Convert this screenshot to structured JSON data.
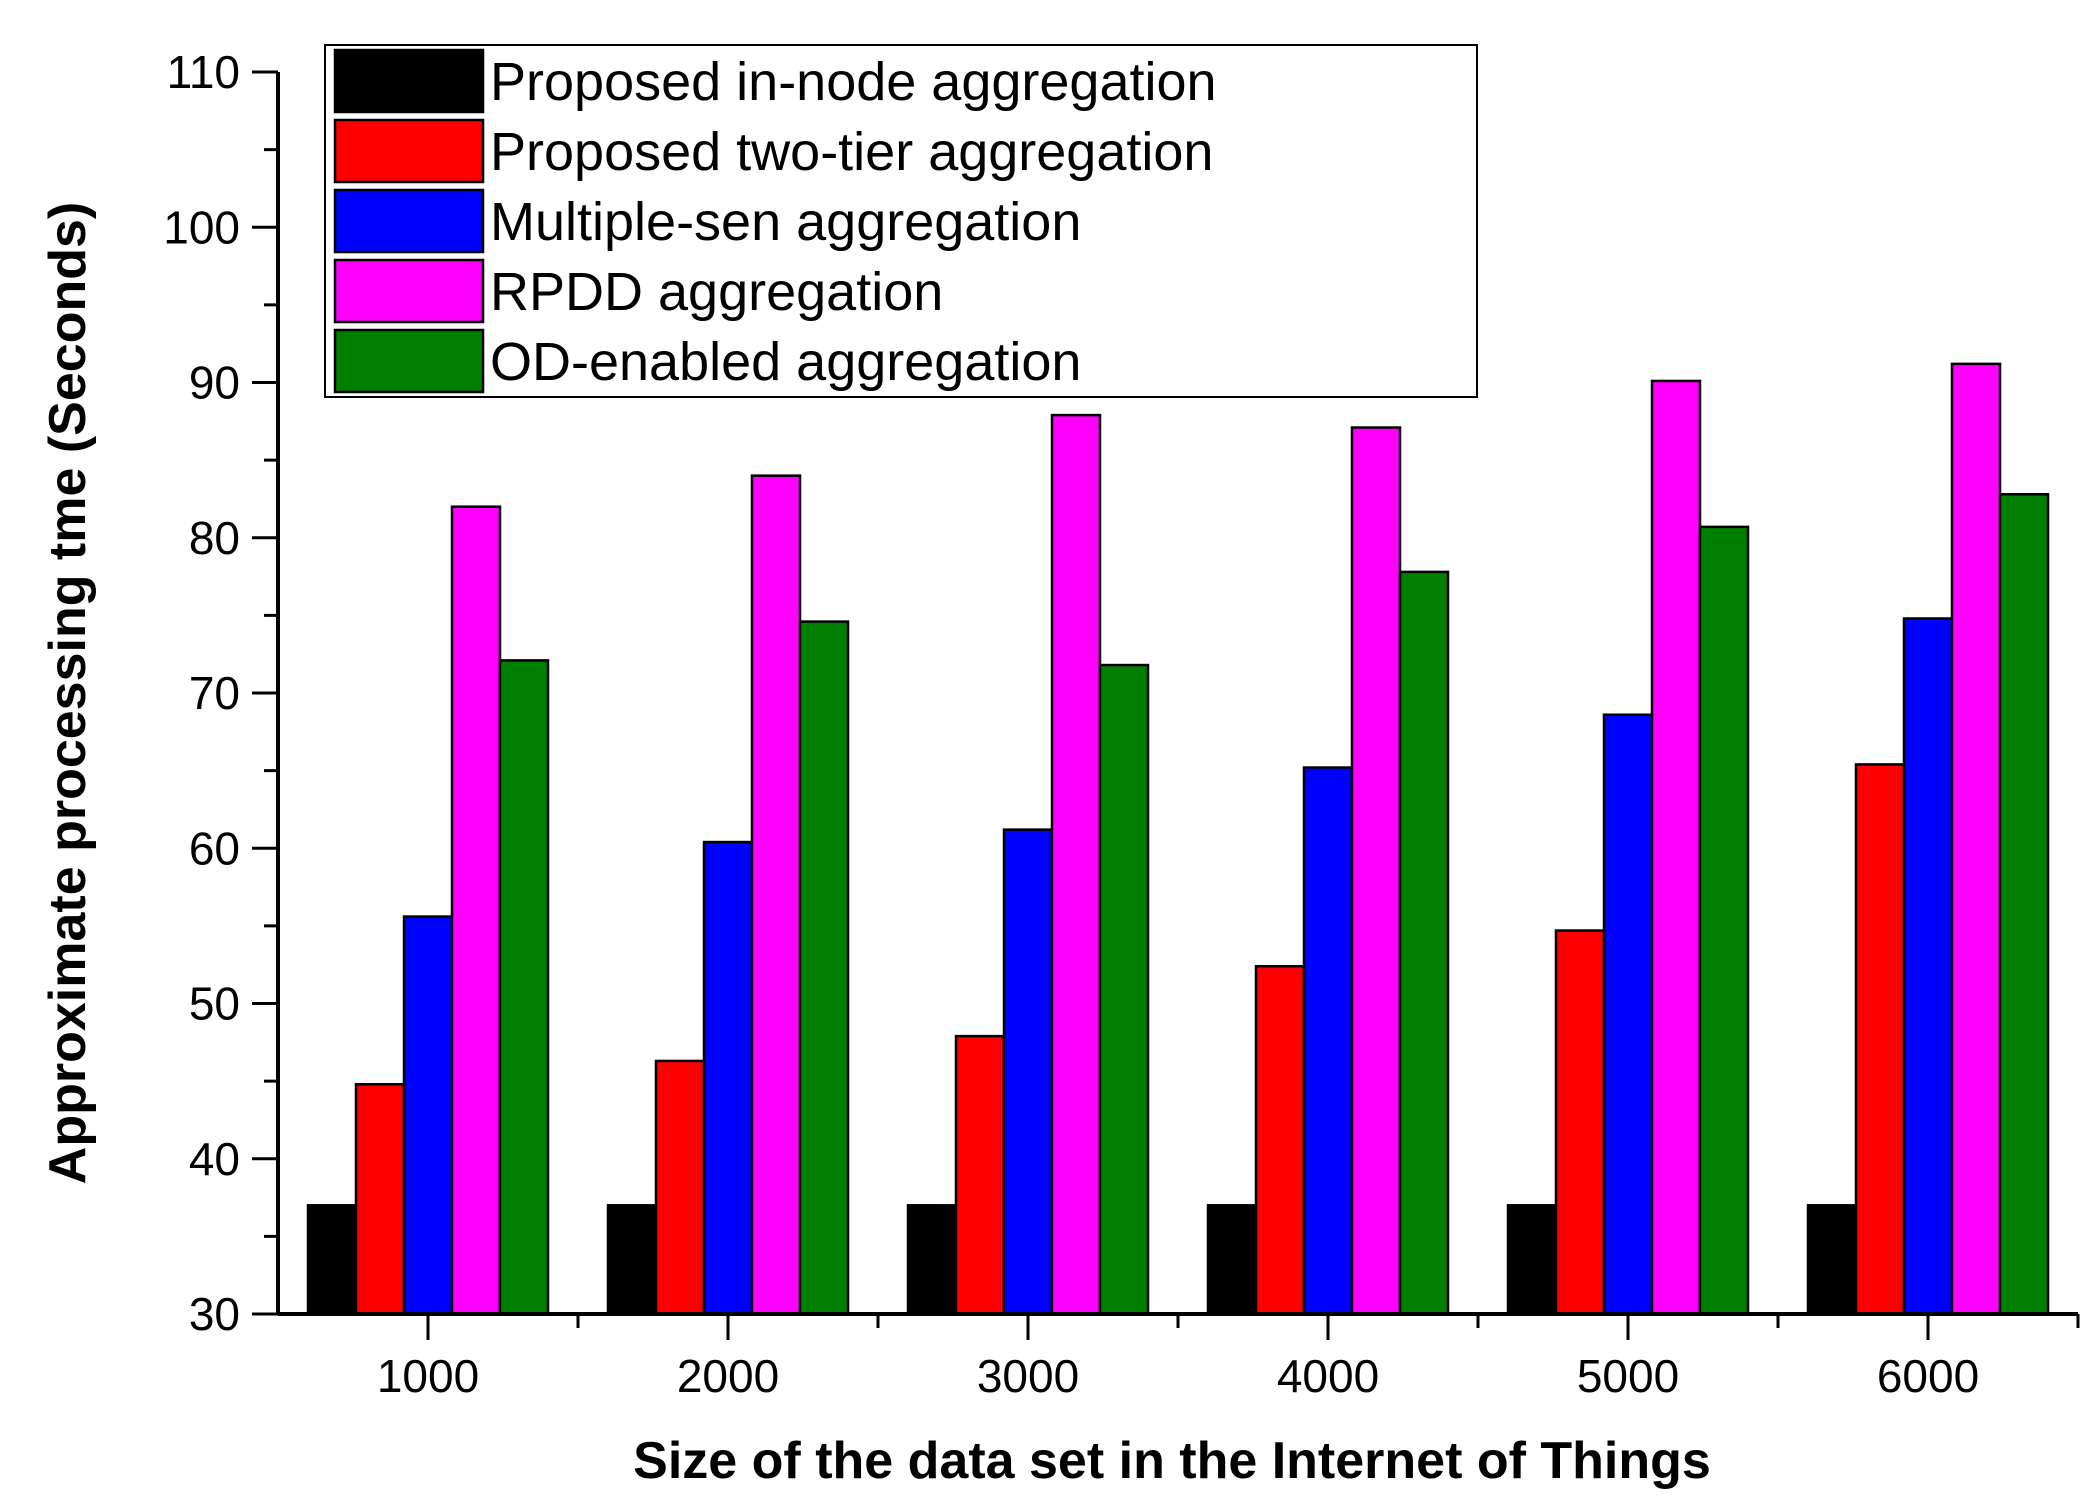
{
  "chart_data": {
    "type": "bar",
    "title": "",
    "xlabel": "Size of the data set in the Internet of Things",
    "ylabel": "Approximate processing tme (Seconds)",
    "ylim": [
      30,
      110
    ],
    "yticks": [
      30,
      40,
      50,
      60,
      70,
      80,
      90,
      100,
      110
    ],
    "categories": [
      "1000",
      "2000",
      "3000",
      "4000",
      "5000",
      "6000"
    ],
    "legend_position": "top-left",
    "series": [
      {
        "name": "Proposed in-node aggregation",
        "color": "#000000",
        "values": [
          37,
          37,
          37,
          37,
          37,
          37
        ]
      },
      {
        "name": "Proposed two-tier aggregation",
        "color": "#ff0000",
        "values": [
          44.8,
          46.3,
          47.9,
          52.4,
          54.7,
          65.4
        ]
      },
      {
        "name": "Multiple-sen aggregation",
        "color": "#0000ff",
        "values": [
          55.6,
          60.4,
          61.2,
          65.2,
          68.6,
          74.8
        ]
      },
      {
        "name": "RPDD aggregation",
        "color": "#ff00ff",
        "values": [
          82.0,
          84.0,
          87.9,
          87.1,
          90.1,
          91.2
        ]
      },
      {
        "name": "OD-enabled aggregation",
        "color": "#008000",
        "values": [
          72.1,
          74.6,
          71.8,
          77.8,
          80.7,
          82.8
        ]
      }
    ]
  }
}
